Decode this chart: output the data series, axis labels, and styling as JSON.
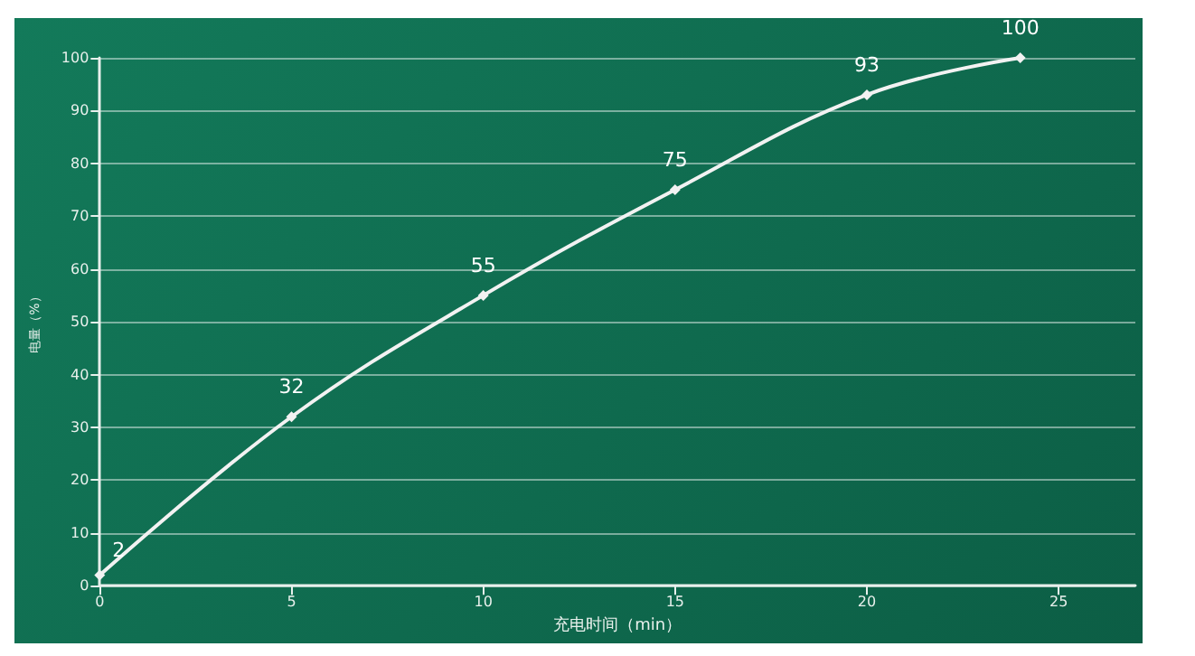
{
  "chart_data": {
    "type": "line",
    "xlabel": "充电时间（min）",
    "ylabel": "电量（%）",
    "x": [
      0,
      5,
      10,
      15,
      20,
      24
    ],
    "series": [
      {
        "color": "#f2f2f2",
        "values": [
          2,
          32,
          55,
          75,
          93,
          100
        ]
      }
    ],
    "xlim": [
      0,
      27
    ],
    "xticks": [
      0,
      5,
      10,
      15,
      20,
      25
    ],
    "ylim": [
      0,
      100
    ],
    "yticks": [
      0,
      10,
      20,
      30,
      40,
      50,
      60,
      70,
      80,
      90,
      100
    ],
    "grid": "y",
    "data_labels": true,
    "marker": "diamond",
    "line_style": "solid"
  }
}
